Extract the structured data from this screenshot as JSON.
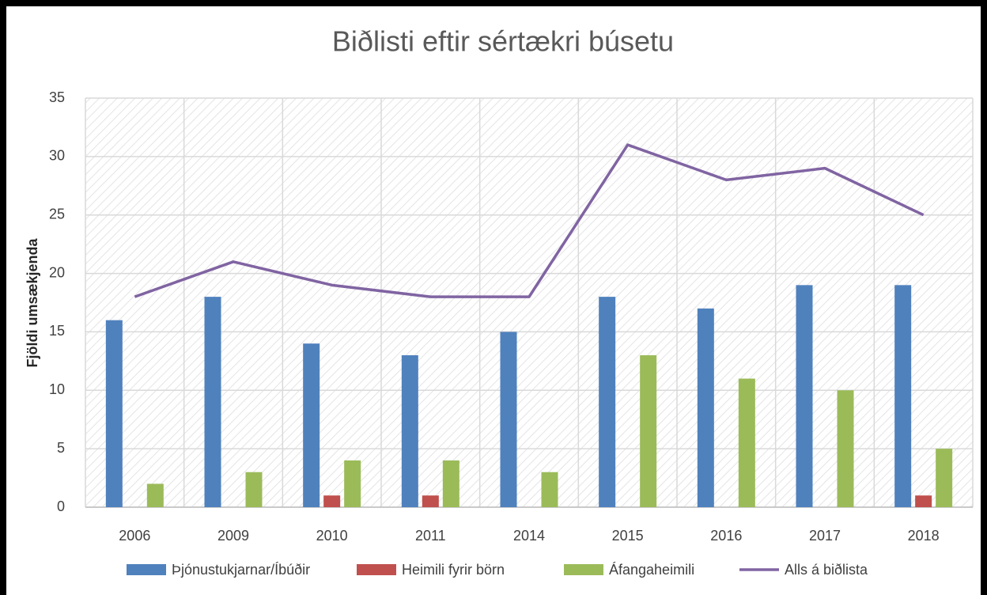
{
  "chart_data": {
    "type": "bar",
    "title": "Biðlisti eftir sértækri búsetu",
    "y_label": "Fjöldi umsækjenda",
    "categories": [
      "2006",
      "2009",
      "2010",
      "2011",
      "2014",
      "2015",
      "2016",
      "2017",
      "2018"
    ],
    "series": [
      {
        "name": "Þjónustukjarnar/Íbúðir",
        "color": "#4f81bd",
        "type": "bar",
        "values": [
          16,
          18,
          14,
          13,
          15,
          18,
          17,
          19,
          19
        ]
      },
      {
        "name": "Heimili fyrir börn",
        "color": "#c0504d",
        "type": "bar",
        "values": [
          0,
          0,
          1,
          1,
          0,
          0,
          0,
          0,
          1
        ]
      },
      {
        "name": "Áfangaheimili",
        "color": "#9bbb59",
        "type": "bar",
        "values": [
          2,
          3,
          4,
          4,
          3,
          13,
          11,
          10,
          5
        ]
      },
      {
        "name": "Alls á biðlista",
        "color": "#8064a2",
        "type": "line",
        "values": [
          18,
          21,
          19,
          18,
          18,
          31,
          28,
          29,
          25
        ]
      }
    ],
    "ylim": [
      0,
      35
    ],
    "yticks": [
      0,
      5,
      10,
      15,
      20,
      25,
      30,
      35
    ],
    "grid": true,
    "legend": "bottom"
  }
}
